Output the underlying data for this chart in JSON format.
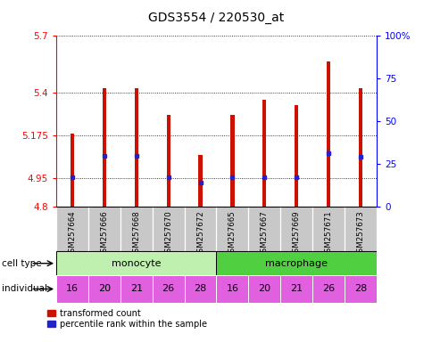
{
  "title": "GDS3554 / 220530_at",
  "samples": [
    "GSM257664",
    "GSM257666",
    "GSM257668",
    "GSM257670",
    "GSM257672",
    "GSM257665",
    "GSM257667",
    "GSM257669",
    "GSM257671",
    "GSM257673"
  ],
  "bar_values": [
    5.185,
    5.425,
    5.425,
    5.285,
    5.075,
    5.285,
    5.365,
    5.335,
    5.565,
    5.425
  ],
  "bar_bottom": 4.8,
  "blue_values": [
    4.955,
    5.07,
    5.07,
    4.955,
    4.928,
    4.955,
    4.955,
    4.955,
    5.085,
    5.065
  ],
  "ylim_left": [
    4.8,
    5.7
  ],
  "yticks_left": [
    4.8,
    4.95,
    5.175,
    5.4,
    5.7
  ],
  "ytick_labels_left": [
    "4.8",
    "4.95",
    "5.175",
    "5.4",
    "5.7"
  ],
  "ylim_right": [
    0,
    100
  ],
  "yticks_right": [
    0,
    25,
    50,
    75,
    100
  ],
  "ytick_labels_right": [
    "0",
    "25",
    "50",
    "75",
    "100%"
  ],
  "individuals": [
    "16",
    "20",
    "21",
    "26",
    "28",
    "16",
    "20",
    "21",
    "26",
    "28"
  ],
  "monocyte_color": "#c0f0b0",
  "macrophage_color": "#50d040",
  "individual_color": "#e060e0",
  "bar_color": "#cc1100",
  "blue_color": "#2222cc",
  "sample_bg_color": "#c8c8c8",
  "bar_width": 0.12
}
